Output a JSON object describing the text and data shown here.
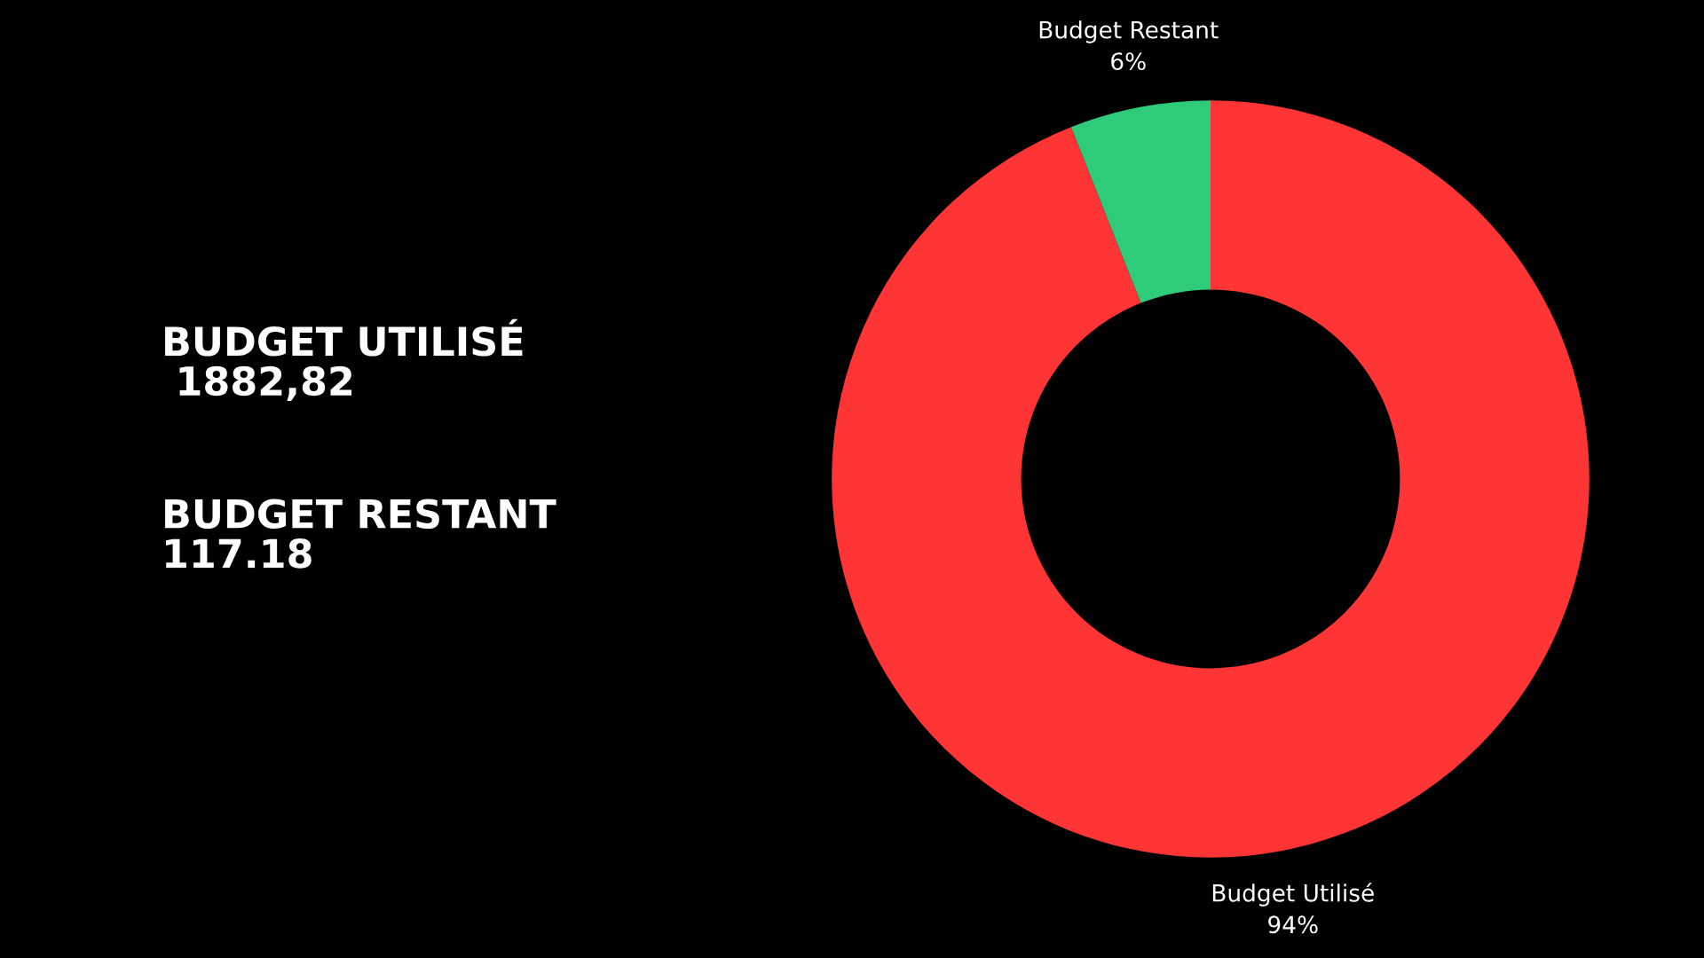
{
  "chart_data": {
    "type": "donut",
    "categories": [
      "Budget Utilisé",
      "Budget Restant"
    ],
    "values": [
      94,
      6
    ],
    "colors": [
      "#ff3434",
      "#2ecb7b"
    ],
    "value_labels": [
      "94%",
      "6%"
    ],
    "legend": false,
    "annotations": [
      "BUDGET UTILISÉ\n 1882,82",
      "BUDGET RESTANT\n117.18"
    ]
  }
}
